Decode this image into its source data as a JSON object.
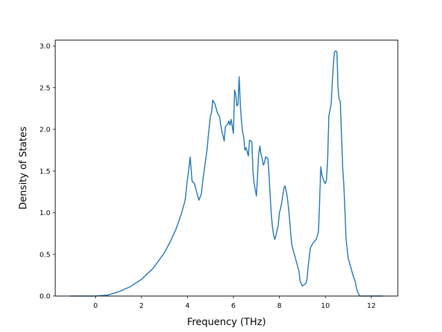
{
  "chart_data": {
    "type": "line",
    "title": "",
    "xlabel": "Frequency (THz)",
    "ylabel": "Density of States",
    "xlim": [
      -1.75,
      13.15
    ],
    "ylim": [
      0,
      3.07
    ],
    "xticks": [
      0,
      2,
      4,
      6,
      8,
      10,
      12
    ],
    "xtick_labels": [
      "0",
      "2",
      "4",
      "6",
      "8",
      "10",
      "12"
    ],
    "yticks": [
      0.0,
      0.5,
      1.0,
      1.5,
      2.0,
      2.5,
      3.0
    ],
    "ytick_labels": [
      "0.0",
      "0.5",
      "1.0",
      "1.5",
      "2.0",
      "2.5",
      "3.0"
    ],
    "grid": false,
    "legend": "none",
    "series": [
      {
        "color": "#1f77b4",
        "x": [
          -1.1,
          -0.5,
          0.0,
          0.5,
          1.0,
          1.5,
          2.0,
          2.5,
          3.0,
          3.25,
          3.5,
          3.75,
          3.9,
          4.0,
          4.05,
          4.12,
          4.2,
          4.3,
          4.4,
          4.45,
          4.5,
          4.6,
          4.7,
          4.8,
          4.85,
          4.9,
          5.0,
          5.05,
          5.1,
          5.2,
          5.3,
          5.4,
          5.45,
          5.5,
          5.55,
          5.6,
          5.65,
          5.7,
          5.75,
          5.8,
          5.85,
          5.9,
          6.0,
          6.05,
          6.1,
          6.15,
          6.2,
          6.25,
          6.3,
          6.35,
          6.4,
          6.45,
          6.5,
          6.55,
          6.6,
          6.65,
          6.7,
          6.8,
          6.85,
          6.9,
          7.0,
          7.05,
          7.1,
          7.15,
          7.2,
          7.25,
          7.3,
          7.35,
          7.4,
          7.5,
          7.55,
          7.6,
          7.65,
          7.7,
          7.75,
          7.8,
          7.85,
          7.95,
          8.0,
          8.05,
          8.1,
          8.2,
          8.25,
          8.3,
          8.35,
          8.4,
          8.45,
          8.5,
          8.55,
          8.65,
          8.75,
          8.85,
          8.9,
          9.0,
          9.05,
          9.15,
          9.2,
          9.25,
          9.35,
          9.45,
          9.6,
          9.7,
          9.75,
          9.8,
          9.85,
          9.95,
          10.0,
          10.05,
          10.1,
          10.15,
          10.25,
          10.3,
          10.35,
          10.4,
          10.45,
          10.5,
          10.55,
          10.6,
          10.65,
          10.75,
          10.8,
          10.85,
          10.9,
          11.0,
          11.05,
          11.1,
          11.2,
          11.3,
          11.35,
          11.4,
          11.5,
          11.9,
          12.2,
          12.5
        ],
        "y": [
          0,
          0,
          0,
          0.01,
          0.05,
          0.11,
          0.2,
          0.33,
          0.52,
          0.65,
          0.8,
          1.0,
          1.15,
          1.4,
          1.5,
          1.67,
          1.38,
          1.35,
          1.25,
          1.2,
          1.15,
          1.22,
          1.45,
          1.65,
          1.75,
          1.9,
          2.16,
          2.2,
          2.35,
          2.3,
          2.2,
          2.15,
          2.05,
          1.97,
          1.92,
          1.86,
          2.03,
          2.05,
          2.06,
          2.1,
          2.05,
          2.12,
          1.95,
          2.47,
          2.42,
          2.28,
          2.3,
          2.63,
          2.3,
          2.1,
          1.97,
          1.9,
          1.75,
          1.78,
          1.73,
          1.68,
          1.87,
          1.85,
          1.5,
          1.35,
          1.2,
          1.45,
          1.7,
          1.8,
          1.7,
          1.65,
          1.57,
          1.6,
          1.67,
          1.65,
          1.45,
          1.2,
          0.97,
          0.82,
          0.73,
          0.68,
          0.73,
          0.85,
          1.0,
          1.05,
          1.12,
          1.3,
          1.32,
          1.25,
          1.17,
          1.05,
          0.9,
          0.72,
          0.6,
          0.5,
          0.4,
          0.3,
          0.18,
          0.12,
          0.13,
          0.15,
          0.2,
          0.35,
          0.58,
          0.63,
          0.68,
          0.77,
          1.15,
          1.55,
          1.45,
          1.37,
          1.35,
          1.4,
          1.65,
          2.16,
          2.3,
          2.55,
          2.8,
          2.93,
          2.94,
          2.93,
          2.5,
          2.36,
          2.33,
          1.55,
          1.35,
          1.03,
          0.68,
          0.44,
          0.4,
          0.35,
          0.25,
          0.17,
          0.1,
          0.05,
          0,
          0,
          0,
          0
        ]
      }
    ]
  }
}
